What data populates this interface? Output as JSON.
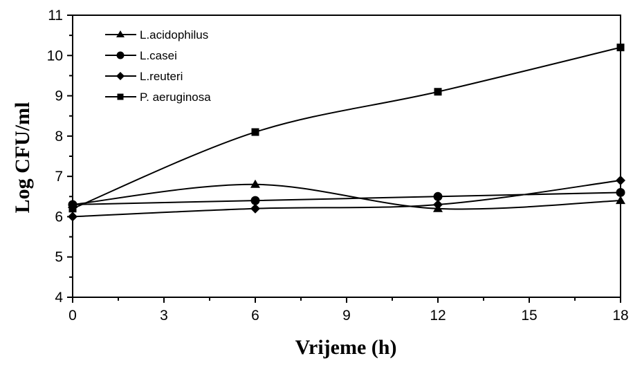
{
  "chart_data": {
    "type": "line",
    "title": "",
    "xlabel": "Vrijeme (h)",
    "ylabel": "Log CFU/ml",
    "xlim": [
      0,
      18
    ],
    "ylim": [
      4,
      11
    ],
    "xticks": [
      0,
      3,
      6,
      9,
      12,
      15,
      18
    ],
    "yticks": [
      4,
      5,
      6,
      7,
      8,
      9,
      10,
      11
    ],
    "grid": false,
    "legend_position": "top-left",
    "x": [
      0,
      6,
      12,
      18
    ],
    "series": [
      {
        "name": "L.acidophilus",
        "marker": "triangle",
        "values": [
          6.3,
          6.8,
          6.2,
          6.4
        ]
      },
      {
        "name": "L.casei",
        "marker": "circle",
        "values": [
          6.3,
          6.4,
          6.5,
          6.6
        ]
      },
      {
        "name": "L.reuteri",
        "marker": "diamond",
        "values": [
          6.0,
          6.2,
          6.3,
          6.9
        ]
      },
      {
        "name": "P. aeruginosa",
        "marker": "square",
        "values": [
          6.2,
          8.1,
          9.1,
          10.2
        ]
      }
    ]
  }
}
